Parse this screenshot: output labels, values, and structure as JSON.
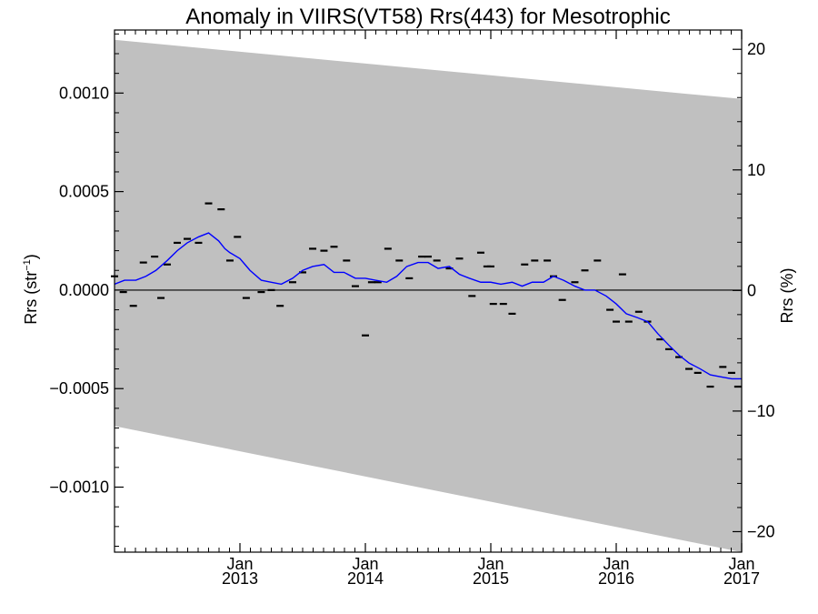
{
  "chart_data": {
    "type": "line",
    "title": "Anomaly in VIIRS(VT58) Rrs(443) for Mesotrophic",
    "ylabel_left": "Rrs (str",
    "ylabel_left_sup": "−1",
    "ylabel_left_close": ")",
    "ylabel_right": "Rrs (%)",
    "x_range_years": [
      2012.0,
      2017.0
    ],
    "x_ticks": [
      {
        "x": 2013.0,
        "month": "Jan",
        "year": "2013"
      },
      {
        "x": 2014.0,
        "month": "Jan",
        "year": "2014"
      },
      {
        "x": 2015.0,
        "month": "Jan",
        "year": "2015"
      },
      {
        "x": 2016.0,
        "month": "Jan",
        "year": "2016"
      },
      {
        "x": 2017.0,
        "month": "Jan",
        "year": "2017"
      }
    ],
    "ylim_left": [
      -0.00133,
      0.00132
    ],
    "ylim_right": [
      -21.7,
      21.6
    ],
    "y_ticks_left": [
      {
        "v": 0.001,
        "label": "0.0010"
      },
      {
        "v": 0.0005,
        "label": "0.0005"
      },
      {
        "v": 0.0,
        "label": "0.0000"
      },
      {
        "v": -0.0005,
        "label": "−0.0005"
      },
      {
        "v": -0.001,
        "label": "−0.0010"
      }
    ],
    "y_ticks_right": [
      {
        "v": 20,
        "label": "20"
      },
      {
        "v": 10,
        "label": "10"
      },
      {
        "v": 0,
        "label": "0"
      },
      {
        "v": -10,
        "label": "−10"
      },
      {
        "v": -20,
        "label": "−20"
      }
    ],
    "uncertainty_band": {
      "x": [
        2012.0,
        2017.0
      ],
      "upper": [
        0.00127,
        0.00097
      ],
      "lower": [
        -0.00069,
        -0.00133
      ],
      "color": "#c0c0c0"
    },
    "zero_line": 0.0,
    "series": [
      {
        "kind": "points",
        "x": [
          2012.0,
          2012.07,
          2012.15,
          2012.23,
          2012.32,
          2012.37,
          2012.42,
          2012.5,
          2012.58,
          2012.67,
          2012.75,
          2012.85,
          2012.92,
          2012.98,
          2013.05,
          2013.17,
          2013.25,
          2013.32,
          2013.42,
          2013.5,
          2013.58,
          2013.67,
          2013.75,
          2013.85,
          2013.92,
          2014.0,
          2014.05,
          2014.1,
          2014.18,
          2014.27,
          2014.35,
          2014.45,
          2014.5,
          2014.57,
          2014.67,
          2014.75,
          2014.85,
          2014.92,
          2014.97,
          2015.0,
          2015.02,
          2015.1,
          2015.17,
          2015.27,
          2015.35,
          2015.45,
          2015.5,
          2015.57,
          2015.67,
          2015.75,
          2015.85,
          2015.95,
          2016.0,
          2016.05,
          2016.1,
          2016.18,
          2016.25,
          2016.35,
          2016.42,
          2016.5,
          2016.58,
          2016.65,
          2016.75,
          2016.85,
          2016.92,
          2016.97
        ],
        "values": [
          7e-05,
          -1e-05,
          -8e-05,
          0.00014,
          0.00017,
          -4e-05,
          0.00013,
          0.00024,
          0.00026,
          0.00024,
          0.00044,
          0.00041,
          0.00015,
          0.00027,
          -4e-05,
          -1e-05,
          0.0,
          -8e-05,
          4e-05,
          9e-05,
          0.00021,
          0.0002,
          0.00022,
          0.00015,
          2e-05,
          -0.00023,
          4e-05,
          4e-05,
          0.00021,
          0.00015,
          6e-05,
          0.00017,
          0.00017,
          0.00015,
          0.00011,
          0.00016,
          -3e-05,
          0.00019,
          0.00012,
          0.00012,
          -7e-05,
          -7e-05,
          -0.00012,
          0.00013,
          0.00015,
          0.00015,
          7e-05,
          -5e-05,
          4e-05,
          0.0001,
          0.00015,
          -0.0001,
          -0.00016,
          8e-05,
          -0.00016,
          -0.00011,
          -0.00016,
          -0.00025,
          -0.0003,
          -0.00034,
          -0.0004,
          -0.00042,
          -0.00049,
          -0.00039,
          -0.00042,
          -0.00049
        ],
        "color": "#000000"
      },
      {
        "kind": "line",
        "x": [
          2012.0,
          2012.08,
          2012.17,
          2012.25,
          2012.33,
          2012.42,
          2012.5,
          2012.58,
          2012.67,
          2012.75,
          2012.83,
          2012.88,
          2012.92,
          2013.0,
          2013.04,
          2013.08,
          2013.17,
          2013.25,
          2013.33,
          2013.42,
          2013.5,
          2013.58,
          2013.67,
          2013.75,
          2013.83,
          2013.92,
          2014.0,
          2014.08,
          2014.17,
          2014.25,
          2014.33,
          2014.42,
          2014.5,
          2014.58,
          2014.67,
          2014.75,
          2014.83,
          2014.92,
          2015.0,
          2015.08,
          2015.17,
          2015.25,
          2015.33,
          2015.42,
          2015.5,
          2015.58,
          2015.67,
          2015.75,
          2015.83,
          2015.92,
          2016.0,
          2016.08,
          2016.17,
          2016.25,
          2016.33,
          2016.42,
          2016.5,
          2016.58,
          2016.67,
          2016.75,
          2016.83,
          2016.92,
          2017.0
        ],
        "values": [
          3e-05,
          5e-05,
          5e-05,
          7e-05,
          0.0001,
          0.00015,
          0.0002,
          0.00024,
          0.00027,
          0.00029,
          0.00025,
          0.00021,
          0.00019,
          0.00016,
          0.00013,
          0.0001,
          5e-05,
          4e-05,
          3e-05,
          6e-05,
          0.0001,
          0.00012,
          0.00013,
          9e-05,
          9e-05,
          6e-05,
          6e-05,
          5e-05,
          4e-05,
          7e-05,
          0.00012,
          0.00014,
          0.00014,
          0.00011,
          0.00012,
          8e-05,
          6e-05,
          4e-05,
          4e-05,
          3e-05,
          4e-05,
          2e-05,
          4e-05,
          4e-05,
          7e-05,
          5e-05,
          2e-05,
          0.0,
          0.0,
          -3e-05,
          -7e-05,
          -0.00012,
          -0.00014,
          -0.00016,
          -0.00022,
          -0.00028,
          -0.00033,
          -0.00037,
          -0.0004,
          -0.00043,
          -0.00044,
          -0.00045,
          -0.00045
        ],
        "color": "#0000ff"
      }
    ]
  }
}
